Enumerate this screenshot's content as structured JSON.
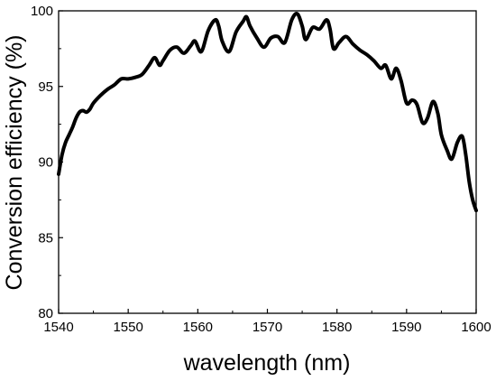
{
  "chart_data": {
    "type": "line",
    "title": "",
    "xlabel": "wavelength (nm)",
    "ylabel": "Conversion efficiency (%)",
    "xlim": [
      1540,
      1600
    ],
    "ylim": [
      80,
      100
    ],
    "xticks": [
      1540,
      1550,
      1560,
      1570,
      1580,
      1590,
      1600
    ],
    "yticks": [
      80,
      85,
      90,
      95,
      100
    ],
    "xtick_labels": [
      "1540",
      "1550",
      "1560",
      "1570",
      "1580",
      "1590",
      "1600"
    ],
    "ytick_labels": [
      "80",
      "85",
      "90",
      "95",
      "100"
    ],
    "grid": false,
    "legend": "none",
    "line_color": "#000000",
    "series": [
      {
        "x": [
          1540.0,
          1540.5,
          1541.0,
          1541.5,
          1542.0,
          1542.5,
          1543.0,
          1543.5,
          1544.0,
          1544.5,
          1545.0,
          1546.0,
          1547.0,
          1548.0,
          1549.0,
          1550.0,
          1551.0,
          1552.0,
          1553.0,
          1553.8,
          1554.5,
          1555.0,
          1556.0,
          1557.0,
          1558.0,
          1559.0,
          1559.6,
          1560.5,
          1561.5,
          1562.5,
          1563.0,
          1563.5,
          1564.5,
          1565.5,
          1566.5,
          1567.0,
          1567.5,
          1568.5,
          1569.5,
          1570.5,
          1571.5,
          1572.5,
          1573.5,
          1574.3,
          1575.0,
          1575.5,
          1576.5,
          1577.5,
          1578.5,
          1579.0,
          1579.5,
          1580.3,
          1581.3,
          1582.3,
          1583.3,
          1584.3,
          1585.3,
          1586.3,
          1587.0,
          1587.8,
          1588.5,
          1589.2,
          1590.0,
          1590.8,
          1591.5,
          1592.3,
          1593.0,
          1593.8,
          1594.5,
          1595.0,
          1595.8,
          1596.5,
          1597.3,
          1598.0,
          1598.5,
          1599.0,
          1599.5,
          1600.0
        ],
        "y": [
          89.2,
          90.5,
          91.3,
          91.8,
          92.3,
          92.9,
          93.3,
          93.4,
          93.3,
          93.5,
          93.9,
          94.4,
          94.8,
          95.1,
          95.5,
          95.5,
          95.6,
          95.8,
          96.4,
          96.9,
          96.4,
          96.7,
          97.4,
          97.6,
          97.2,
          97.7,
          98.0,
          97.3,
          98.7,
          99.4,
          99.0,
          98.0,
          97.3,
          98.6,
          99.3,
          99.6,
          99.0,
          98.2,
          97.6,
          98.2,
          98.3,
          97.9,
          99.4,
          99.8,
          99.0,
          98.1,
          98.9,
          98.8,
          99.4,
          98.8,
          97.5,
          97.9,
          98.3,
          97.8,
          97.4,
          97.1,
          96.7,
          96.2,
          96.4,
          95.5,
          96.2,
          95.4,
          93.9,
          94.1,
          93.8,
          92.6,
          92.9,
          94.0,
          93.2,
          91.8,
          90.8,
          90.2,
          91.3,
          91.7,
          90.5,
          88.7,
          87.5,
          86.8
        ]
      }
    ]
  }
}
